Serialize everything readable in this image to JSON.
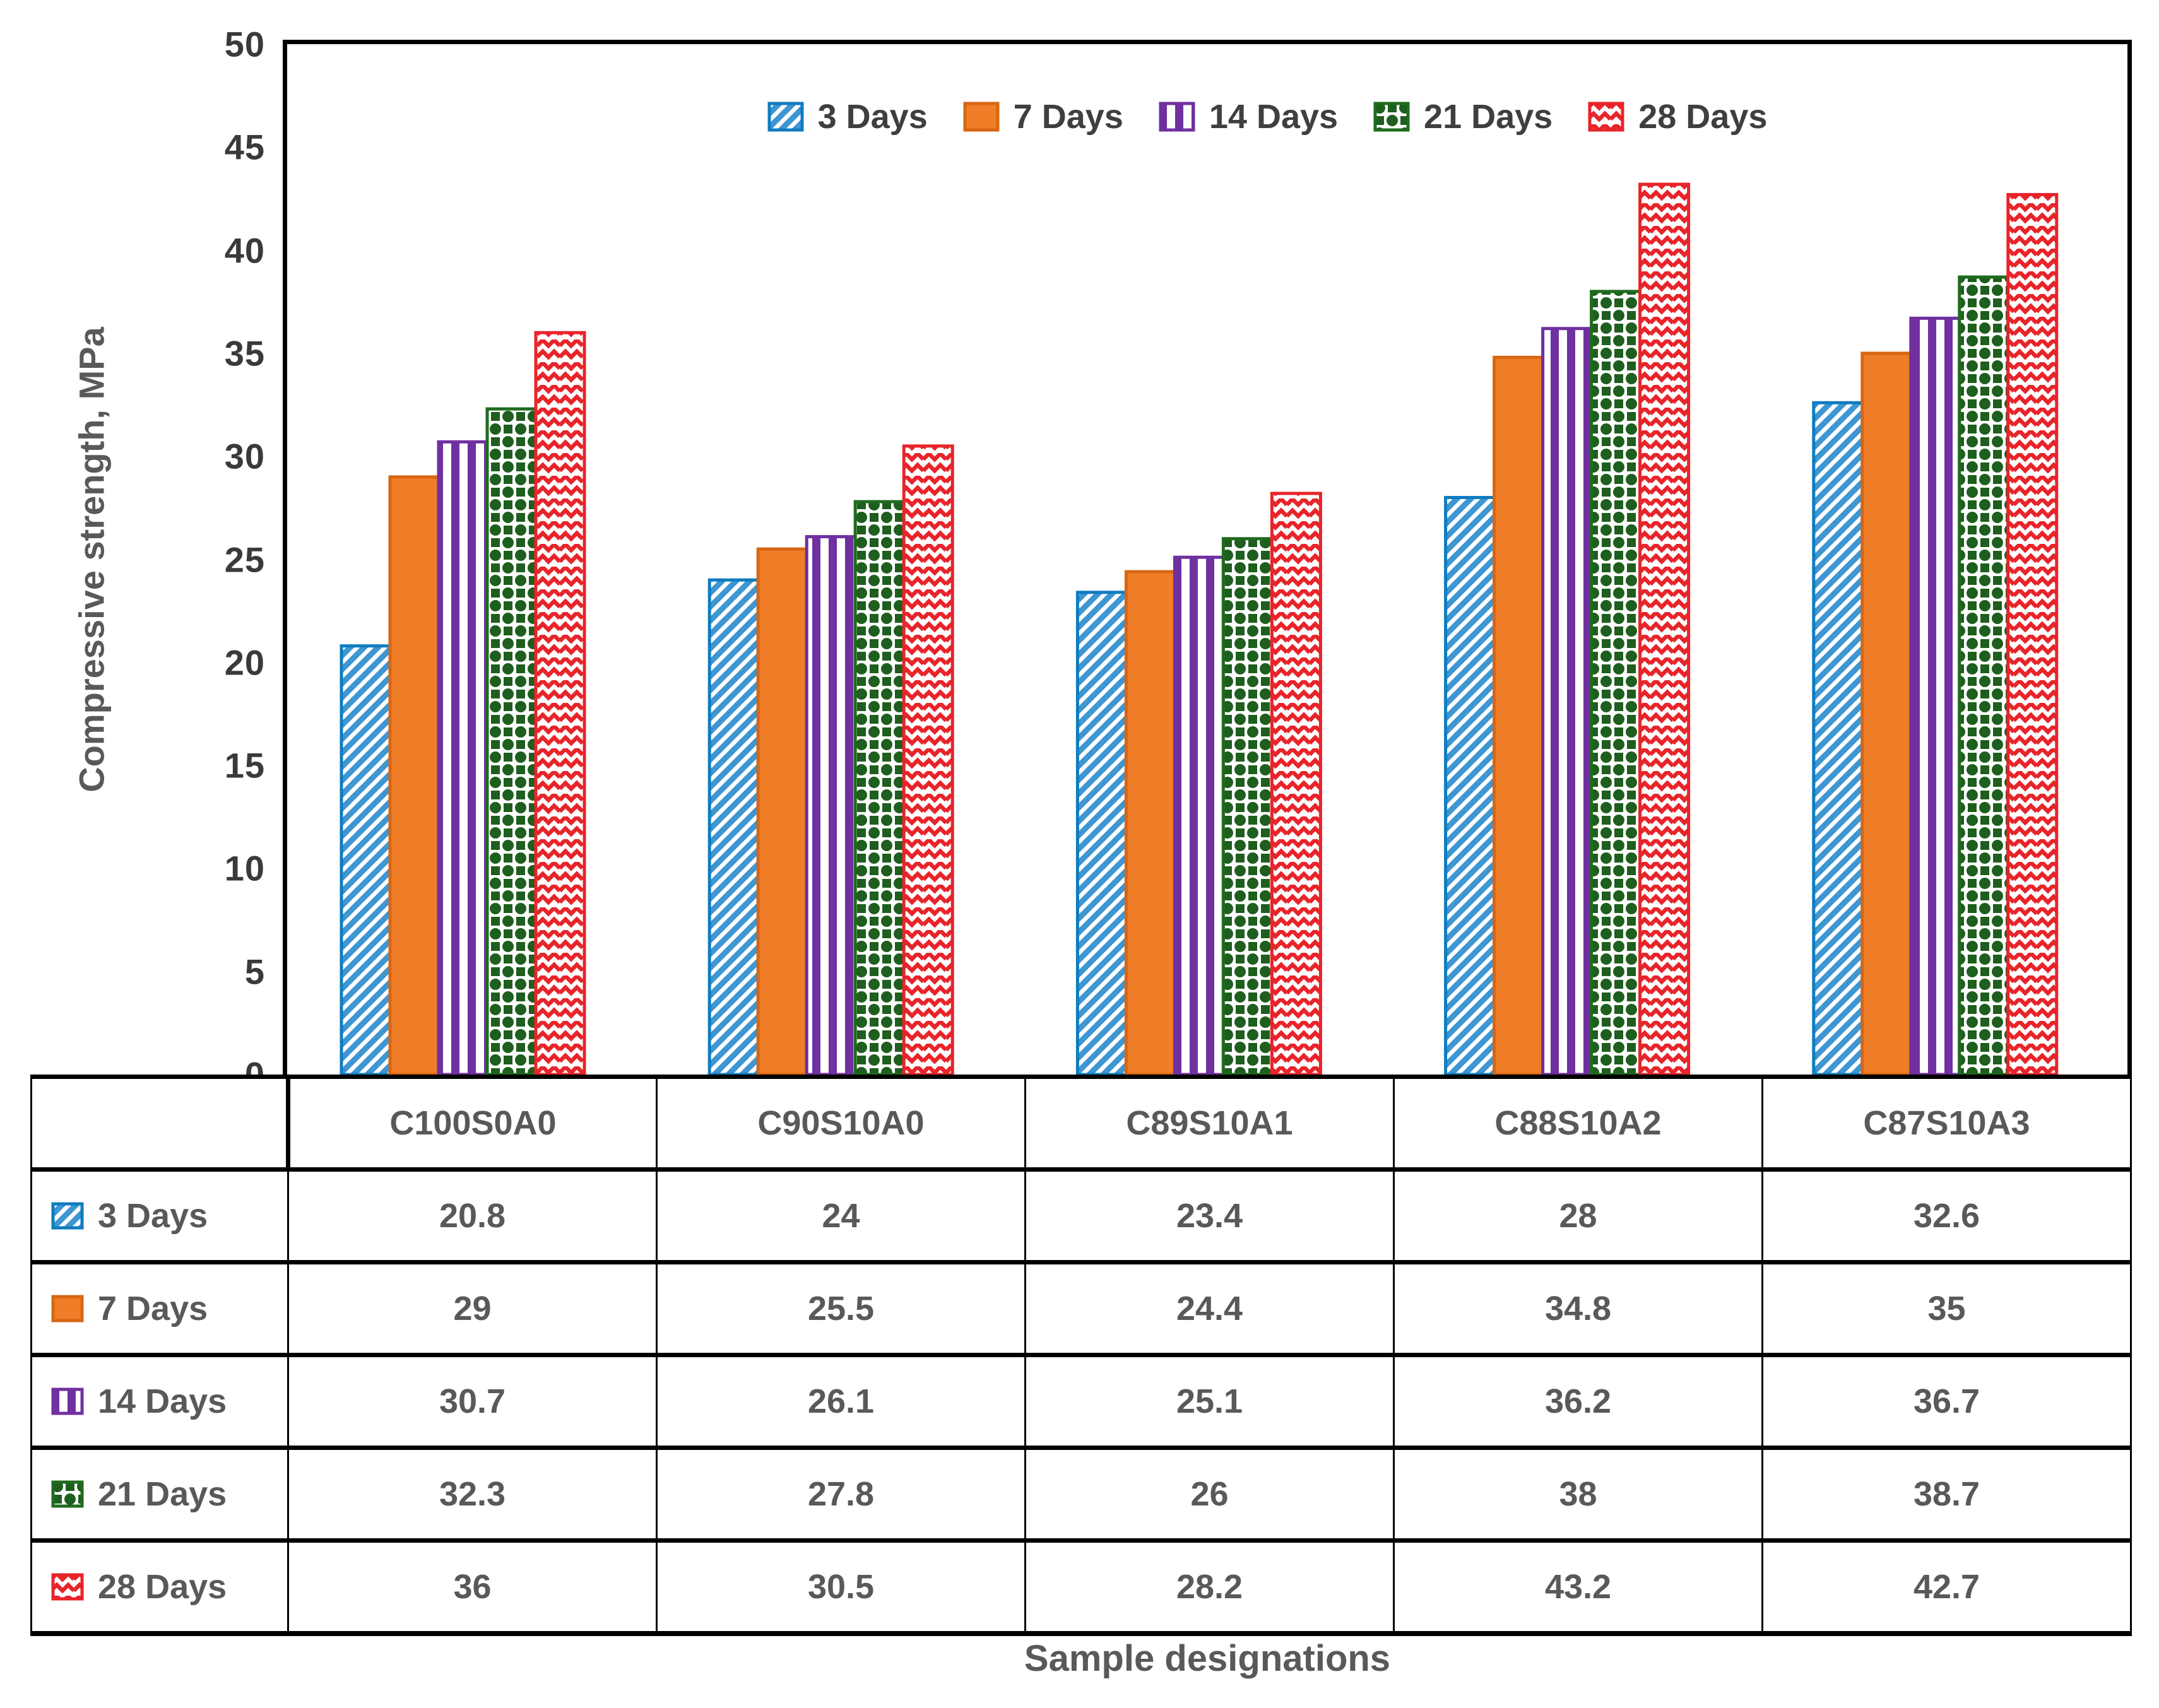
{
  "colors": {
    "plot_border": "#000000",
    "axis_text": "#3a3a3a",
    "label_text": "#3f3f3f",
    "value_text": "#595959",
    "background": "#ffffff"
  },
  "chart_data": {
    "type": "bar",
    "title": "",
    "xlabel": "Sample designations",
    "ylabel": "Compressive strength, MPa",
    "ylim": [
      0,
      50
    ],
    "ytick_step": 5,
    "yticks": [
      0,
      5,
      10,
      15,
      20,
      25,
      30,
      35,
      40,
      45,
      50
    ],
    "grid": false,
    "legend_position": "top-center-inside",
    "categories": [
      "C100S0A0",
      "C90S10A0",
      "C89S10A1",
      "C88S10A2",
      "C87S10A3"
    ],
    "series": [
      {
        "name": "3 Days",
        "pattern": "diagonal-hatch",
        "fill": "#3e96d2",
        "border": "#0f7cc0",
        "values": [
          20.8,
          24,
          23.4,
          28,
          32.6
        ]
      },
      {
        "name": "7 Days",
        "pattern": "solid",
        "fill": "#f07d28",
        "border": "#d86613",
        "values": [
          29,
          25.5,
          24.4,
          34.8,
          35
        ]
      },
      {
        "name": "14 Days",
        "pattern": "vertical-stripes",
        "fill": "#7030a0",
        "border": "#7030a0",
        "values": [
          30.7,
          26.1,
          25.1,
          36.2,
          36.7
        ]
      },
      {
        "name": "21 Days",
        "pattern": "spheres",
        "fill": "#1e5e1e",
        "border": "#1f6b1f",
        "values": [
          32.3,
          27.8,
          26,
          38,
          38.7
        ]
      },
      {
        "name": "28 Days",
        "pattern": "zigzag-weave",
        "fill": "#e8242a",
        "border": "#e8242a",
        "values": [
          36,
          30.5,
          28.2,
          43.2,
          42.7
        ]
      }
    ]
  }
}
